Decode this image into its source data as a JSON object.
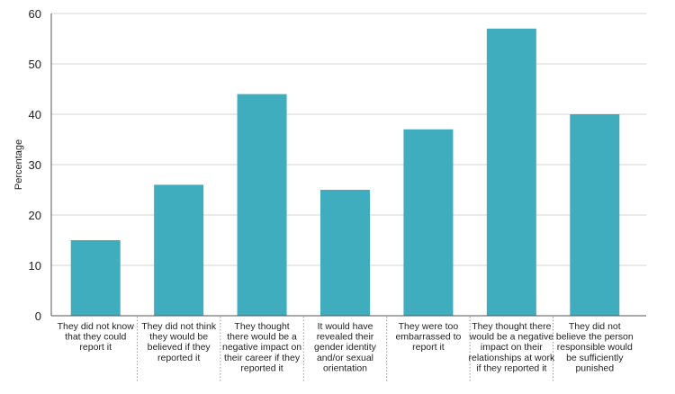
{
  "chart_data": {
    "type": "bar",
    "ylabel": "Percentage",
    "xlabel": "",
    "ylim": [
      0,
      60
    ],
    "yticks": [
      0,
      10,
      20,
      30,
      40,
      50,
      60
    ],
    "grid": true,
    "bar_color": "#3fadbd",
    "categories": [
      [
        "They did not know",
        "that they could",
        "report it"
      ],
      [
        "They did not think",
        "they would be",
        "believed if they",
        "reported it"
      ],
      [
        "They thought",
        "there would be a",
        "negative impact on",
        "their career if they",
        "reported it"
      ],
      [
        "It would have",
        "revealed their",
        "gender identity",
        "and/or sexual",
        "orientation"
      ],
      [
        "They were too",
        "embarrassed to",
        "report it"
      ],
      [
        "They thought there",
        "would be a negative",
        "impact on their",
        "relationships at work",
        "if they reported it"
      ],
      [
        "They did not",
        "believe the person",
        "responsible would",
        "be sufficiently",
        "punished"
      ]
    ],
    "values": [
      15,
      26,
      44,
      25,
      37,
      57,
      40
    ]
  }
}
